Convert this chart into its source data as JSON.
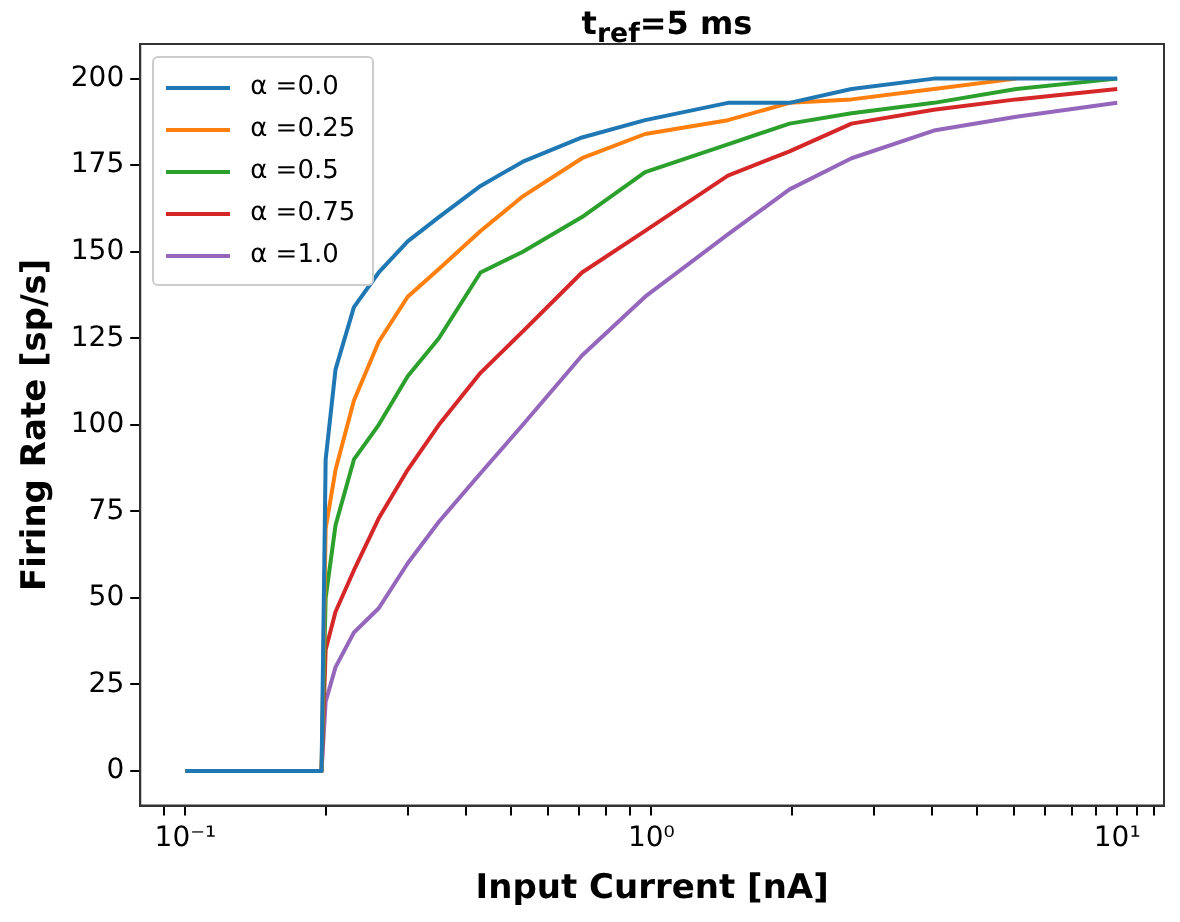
{
  "chart_data": {
    "type": "line",
    "title": "t$_{ref}$=5 ms",
    "xlabel": "Input Current [nA]",
    "ylabel": "Firing Rate [sp/s]",
    "x": [
      0.1,
      0.196,
      0.2,
      0.21,
      0.23,
      0.26,
      0.3,
      0.35,
      0.43,
      0.53,
      0.71,
      0.97,
      1.46,
      1.98,
      2.69,
      4.04,
      6.07,
      10
    ],
    "series": [
      {
        "name": "α =0.0",
        "color": "#1f77b4",
        "values": [
          0,
          0,
          90,
          116,
          134,
          144,
          153,
          160,
          169,
          176,
          183,
          188,
          193,
          193,
          197,
          200,
          200,
          200
        ]
      },
      {
        "name": "α =0.25",
        "color": "#ff7f0e",
        "values": [
          0,
          0,
          70,
          87,
          107,
          124,
          137,
          145,
          156,
          166,
          177,
          184,
          188,
          193,
          194,
          197,
          200,
          null
        ]
      },
      {
        "name": "α =0.5",
        "color": "#2ca02c",
        "values": [
          0,
          0,
          50,
          71,
          90,
          100,
          114,
          125,
          144,
          150,
          160,
          173,
          181,
          187,
          190,
          193,
          197,
          200
        ]
      },
      {
        "name": "α =0.75",
        "color": "#d62728",
        "values": [
          0,
          0,
          35,
          46,
          58,
          73,
          87,
          100,
          115,
          127,
          144,
          156,
          172,
          179,
          187,
          191,
          194,
          197
        ]
      },
      {
        "name": "α =1.0",
        "color": "#9467bd",
        "values": [
          0,
          0,
          20,
          30,
          40,
          47,
          60,
          72,
          86,
          100,
          120,
          137,
          155,
          168,
          177,
          185,
          189,
          193
        ]
      }
    ],
    "log": "x",
    "xlim": [
      0.08,
      12.6
    ],
    "xticks": [
      {
        "value": 0.09,
        "label": null
      },
      {
        "value": 0.1,
        "label": "10⁻¹"
      },
      {
        "value": 0.2,
        "label": null
      },
      {
        "value": 0.3,
        "label": null
      },
      {
        "value": 0.4,
        "label": null
      },
      {
        "value": 0.5,
        "label": null
      },
      {
        "value": 0.6,
        "label": null
      },
      {
        "value": 0.7,
        "label": null
      },
      {
        "value": 0.8,
        "label": null
      },
      {
        "value": 0.9,
        "label": null
      },
      {
        "value": 1,
        "label": "10⁰"
      },
      {
        "value": 2,
        "label": null
      },
      {
        "value": 3,
        "label": null
      },
      {
        "value": 4,
        "label": null
      },
      {
        "value": 5,
        "label": null
      },
      {
        "value": 6,
        "label": null
      },
      {
        "value": 7,
        "label": null
      },
      {
        "value": 8,
        "label": null
      },
      {
        "value": 9,
        "label": null
      },
      {
        "value": 10,
        "label": "10¹"
      },
      {
        "value": 11,
        "label": null
      },
      {
        "value": 12,
        "label": null
      }
    ],
    "ylim": [
      -10,
      210
    ],
    "yticks": [
      0,
      25,
      50,
      75,
      100,
      125,
      150,
      175,
      200
    ],
    "grid": false,
    "legend": "top left",
    "marker": "none",
    "line_style": "solid"
  }
}
